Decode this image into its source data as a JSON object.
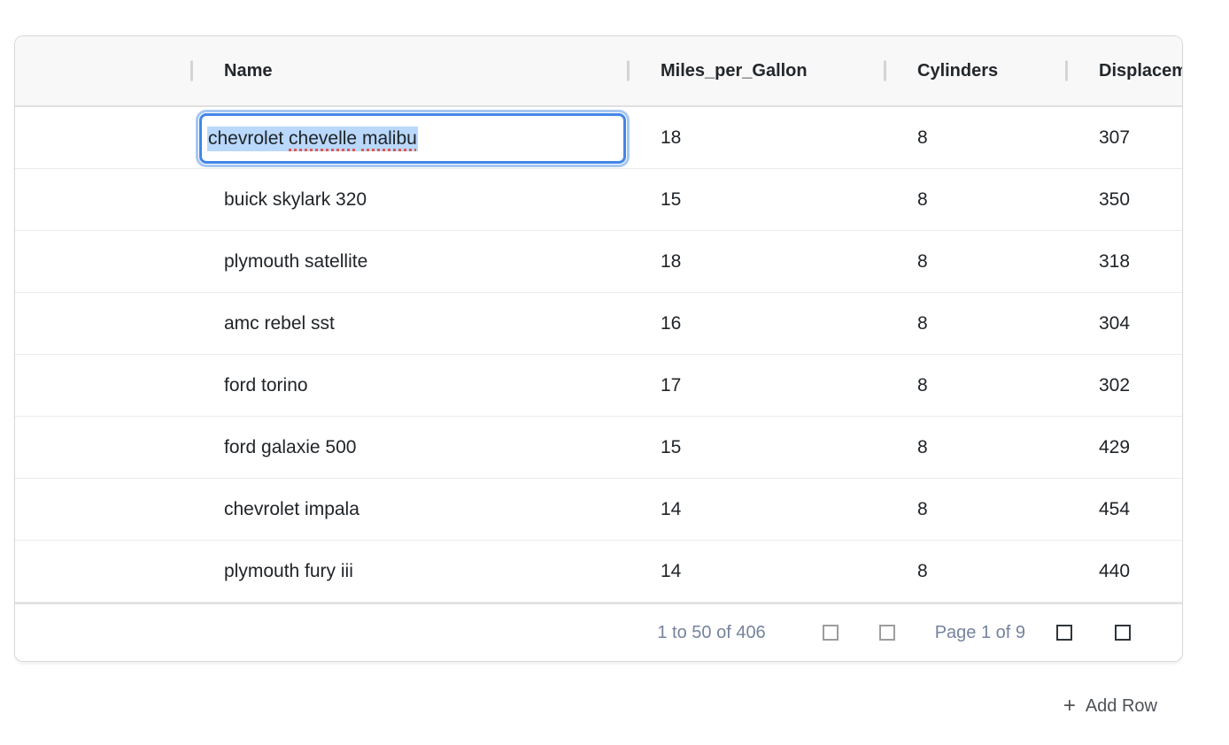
{
  "table": {
    "columns": [
      {
        "id": "drag",
        "label": ""
      },
      {
        "id": "name",
        "label": "Name"
      },
      {
        "id": "miles_per_gallon",
        "label": "Miles_per_Gallon"
      },
      {
        "id": "cylinders",
        "label": "Cylinders"
      },
      {
        "id": "displacement",
        "label": "Displacement"
      }
    ],
    "rows": [
      {
        "name": "chevrolet chevelle malibu",
        "mpg": "18",
        "cylinders": "8",
        "displacement": "307"
      },
      {
        "name": "buick skylark 320",
        "mpg": "15",
        "cylinders": "8",
        "displacement": "350"
      },
      {
        "name": "plymouth satellite",
        "mpg": "18",
        "cylinders": "8",
        "displacement": "318"
      },
      {
        "name": "amc rebel sst",
        "mpg": "16",
        "cylinders": "8",
        "displacement": "304"
      },
      {
        "name": "ford torino",
        "mpg": "17",
        "cylinders": "8",
        "displacement": "302"
      },
      {
        "name": "ford galaxie 500",
        "mpg": "15",
        "cylinders": "8",
        "displacement": "429"
      },
      {
        "name": "chevrolet impala",
        "mpg": "14",
        "cylinders": "8",
        "displacement": "454"
      },
      {
        "name": "plymouth fury iii",
        "mpg": "14",
        "cylinders": "8",
        "displacement": "440"
      }
    ]
  },
  "editor": {
    "row_index": 0,
    "column": "name",
    "value": "chevrolet chevelle malibu",
    "segments": [
      "chevrolet ",
      "chevelle",
      " ",
      "malibu"
    ],
    "selection": "all-text-selected",
    "misspelled_words": [
      "chevelle",
      "malibu"
    ]
  },
  "pagination": {
    "summary": "1 to 50 of 406",
    "page_label": "Page 1 of 9",
    "buttons": [
      {
        "name": "first-page",
        "enabled": false
      },
      {
        "name": "previous-page",
        "enabled": false
      },
      {
        "name": "next-page",
        "enabled": true
      },
      {
        "name": "last-page",
        "enabled": true
      }
    ]
  },
  "add_row": {
    "plus_glyph": "+",
    "label": "Add Row"
  },
  "colors": {
    "accent_blue": "#4286e8",
    "focus_ring": "#a6c7f2",
    "selection_highlight": "#b9d8fb",
    "spellcheck_red": "#e4574d",
    "header_bg": "#f8f8f8",
    "border": "#d9d9d9",
    "row_border": "#ebebeb",
    "pagination_text": "#75839d",
    "disabled_icon": "#9d9d9d",
    "enabled_icon": "#303539"
  }
}
